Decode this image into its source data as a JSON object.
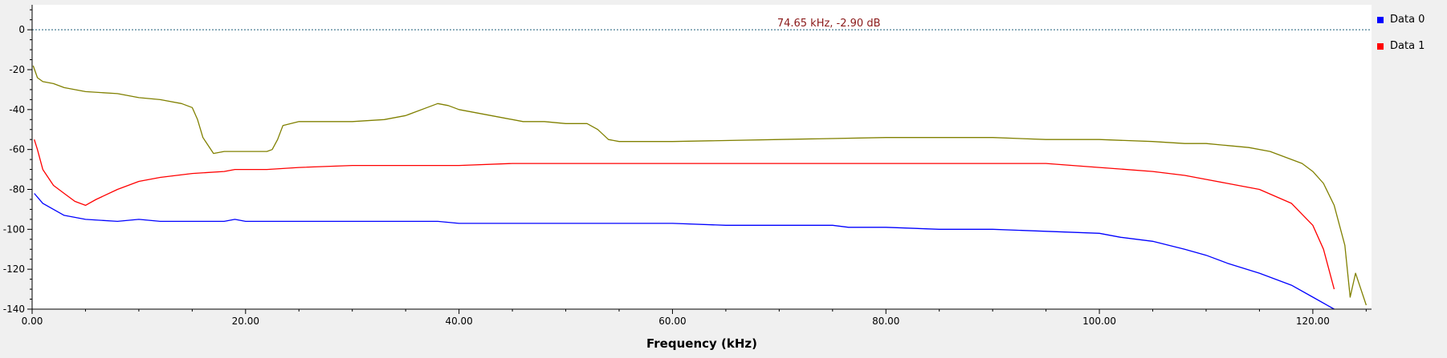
{
  "chart_data": {
    "type": "line",
    "title": "",
    "xlabel": "Frequency (kHz)",
    "ylabel": "",
    "xlim": [
      0,
      125.5
    ],
    "ylim": [
      -140,
      12.5
    ],
    "x_ticks": [
      {
        "value": 0,
        "label": "0.00"
      },
      {
        "value": 20,
        "label": "20.00"
      },
      {
        "value": 40,
        "label": "40.00"
      },
      {
        "value": 60,
        "label": "60.00"
      },
      {
        "value": 80,
        "label": "80.00"
      },
      {
        "value": 100,
        "label": "100.00"
      },
      {
        "value": 120,
        "label": "120.00"
      }
    ],
    "y_ticks": [
      {
        "value": 0,
        "label": "0"
      },
      {
        "value": -20,
        "label": "-20"
      },
      {
        "value": -40,
        "label": "-40"
      },
      {
        "value": -60,
        "label": "-60"
      },
      {
        "value": -80,
        "label": "-80"
      },
      {
        "value": -100,
        "label": "-100"
      },
      {
        "value": -120,
        "label": "-120"
      },
      {
        "value": -140,
        "label": "-140"
      }
    ],
    "grid": false,
    "legend_position": "right",
    "reference_line": {
      "y": 0,
      "color": "#1f5f7a"
    },
    "marker_annotation": {
      "text": "74.65 kHz, -2.90 dB",
      "x": 74.65,
      "y": 0,
      "color": "#8b1a1a"
    },
    "series": [
      {
        "name": "Data 0",
        "color": "#0000ff",
        "x": [
          0.2,
          1,
          2,
          3,
          5,
          8,
          10,
          12,
          15,
          18,
          19,
          20,
          25,
          30,
          35,
          38,
          40,
          45,
          50,
          55,
          60,
          65,
          70,
          75,
          76.5,
          78,
          80,
          85,
          90,
          95,
          100,
          102,
          105,
          108,
          110,
          112,
          115,
          118,
          120,
          122
        ],
        "y": [
          -82,
          -87,
          -90,
          -93,
          -95,
          -96,
          -95,
          -96,
          -96,
          -96,
          -95,
          -96,
          -96,
          -96,
          -96,
          -96,
          -97,
          -97,
          -97,
          -97,
          -97,
          -98,
          -98,
          -98,
          -99,
          -99,
          -99,
          -100,
          -100,
          -101,
          -102,
          -104,
          -106,
          -110,
          -113,
          -117,
          -122,
          -128,
          -134,
          -140
        ]
      },
      {
        "name": "Data 1",
        "color": "#ff0000",
        "x": [
          0.2,
          0.5,
          1,
          2,
          3,
          4,
          5,
          6,
          8,
          10,
          12,
          15,
          18,
          19,
          20,
          22,
          25,
          30,
          35,
          40,
          45,
          50,
          55,
          60,
          65,
          70,
          75,
          80,
          85,
          90,
          95,
          100,
          105,
          108,
          110,
          112,
          115,
          118,
          120,
          121,
          122
        ],
        "y": [
          -55,
          -60,
          -70,
          -78,
          -82,
          -86,
          -88,
          -85,
          -80,
          -76,
          -74,
          -72,
          -71,
          -70,
          -70,
          -70,
          -69,
          -68,
          -68,
          -68,
          -67,
          -67,
          -67,
          -67,
          -67,
          -67,
          -67,
          -67,
          -67,
          -67,
          -67,
          -69,
          -71,
          -73,
          -75,
          -77,
          -80,
          -87,
          -98,
          -110,
          -130
        ]
      },
      {
        "name": "",
        "color": "#808000",
        "x": [
          0.1,
          0.5,
          1,
          2,
          3,
          5,
          8,
          10,
          12,
          14,
          15,
          15.5,
          16,
          17,
          18,
          19,
          20,
          22,
          22.5,
          23,
          23.5,
          25,
          28,
          30,
          33,
          35,
          37,
          38,
          39,
          40,
          42,
          44,
          46,
          48,
          50,
          52,
          53,
          54,
          55,
          60,
          70,
          80,
          90,
          95,
          100,
          105,
          108,
          110,
          112,
          114,
          116,
          117,
          118,
          119,
          120,
          121,
          122,
          123,
          123.5,
          124,
          125
        ],
        "y": [
          -18,
          -24,
          -26,
          -27,
          -29,
          -31,
          -32,
          -34,
          -35,
          -37,
          -39,
          -45,
          -54,
          -62,
          -61,
          -61,
          -61,
          -61,
          -60,
          -55,
          -48,
          -46,
          -46,
          -46,
          -45,
          -43,
          -39,
          -37,
          -38,
          -40,
          -42,
          -44,
          -46,
          -46,
          -47,
          -47,
          -50,
          -55,
          -56,
          -56,
          -55,
          -54,
          -54,
          -55,
          -55,
          -56,
          -57,
          -57,
          -58,
          -59,
          -61,
          -63,
          -65,
          -67,
          -71,
          -77,
          -88,
          -108,
          -134,
          -122,
          -138
        ]
      }
    ]
  }
}
